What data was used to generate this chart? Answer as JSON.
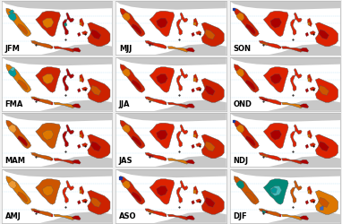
{
  "grid_rows": 4,
  "grid_cols": 3,
  "labels": [
    [
      "JFM",
      "MJJ",
      "SON"
    ],
    [
      "FMA",
      "JJA",
      "OND"
    ],
    [
      "MAM",
      "JAS",
      "NDJ"
    ],
    [
      "AMJ",
      "ASO",
      "DJF"
    ]
  ],
  "bg_color": "#f0f0f0",
  "ocean_color": "#ffffff",
  "label_fontsize": 6,
  "label_color": "#000000",
  "border_color": "#aaaaaa",
  "figsize": [
    3.82,
    2.5
  ],
  "dpi": 100,
  "lon_min": 93,
  "lon_max": 142,
  "lat_min": -11,
  "lat_max": 8,
  "gray_color": "#c8c8c8",
  "white_color": "#f5f5f5",
  "red_dark": "#aa0000",
  "red_mid": "#cc2200",
  "red_bright": "#dd2200",
  "orange_dark": "#cc5500",
  "orange_mid": "#dd7700",
  "orange_light": "#ee9933",
  "teal": "#009999",
  "teal_light": "#44bbbb",
  "blue_dark": "#1133aa",
  "blue_light": "#3366cc",
  "green_teal": "#008877"
}
